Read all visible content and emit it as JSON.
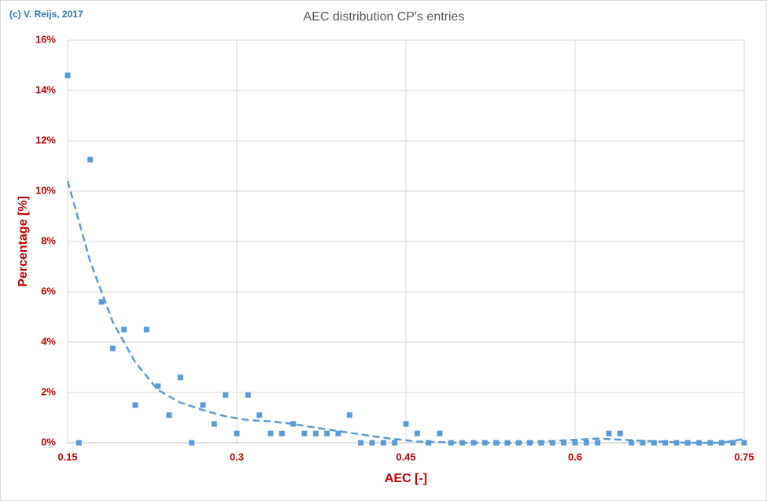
{
  "chart_data": {
    "type": "scatter",
    "title": "AEC distribution CP's entries",
    "subtitle": "(c) V. Reijs, 2017",
    "x_label": "AEC [-]",
    "y_label": "Percentage [%]",
    "xlim": [
      0.15,
      0.75
    ],
    "xticks": [
      0.15,
      0.3,
      0.45,
      0.6,
      0.75
    ],
    "ylim": [
      0,
      16
    ],
    "yticks": [
      {
        "value": 0,
        "label": "0%"
      },
      {
        "value": 2,
        "label": "2%"
      },
      {
        "value": 4,
        "label": "4%"
      },
      {
        "value": 6,
        "label": "6%"
      },
      {
        "value": 8,
        "label": "8%"
      },
      {
        "value": 10,
        "label": "10%"
      },
      {
        "value": 12,
        "label": "12%"
      },
      {
        "value": 14,
        "label": "14%"
      },
      {
        "value": 16,
        "label": "16%"
      }
    ],
    "grid": true,
    "series": [
      {
        "color": "#5b9bd5",
        "style": "markers",
        "x": [
          0.15,
          0.16,
          0.17,
          0.18,
          0.19,
          0.2,
          0.21,
          0.22,
          0.23,
          0.24,
          0.25,
          0.26,
          0.27,
          0.28,
          0.29,
          0.3,
          0.31,
          0.32,
          0.33,
          0.34,
          0.35,
          0.36,
          0.37,
          0.38,
          0.39,
          0.4,
          0.41,
          0.42,
          0.43,
          0.44,
          0.45,
          0.46,
          0.47,
          0.48,
          0.49,
          0.5,
          0.51,
          0.52,
          0.53,
          0.54,
          0.55,
          0.56,
          0.57,
          0.58,
          0.59,
          0.6,
          0.61,
          0.62,
          0.63,
          0.64,
          0.65,
          0.66,
          0.67,
          0.68,
          0.69,
          0.7,
          0.71,
          0.72,
          0.73,
          0.74,
          0.75
        ],
        "values": [
          14.6,
          0,
          11.25,
          5.6,
          3.75,
          4.5,
          1.5,
          4.5,
          2.25,
          1.1,
          2.6,
          0,
          1.5,
          0.75,
          1.9,
          0.37,
          1.9,
          1.1,
          0.37,
          0.37,
          0.75,
          0.37,
          0.37,
          0.37,
          0.37,
          1.1,
          0,
          0,
          0,
          0,
          0.75,
          0.37,
          0,
          0.37,
          0,
          0,
          0,
          0,
          0,
          0,
          0,
          0,
          0,
          0,
          0,
          0,
          0,
          0,
          0.37,
          0.37,
          0,
          0,
          0,
          0,
          0,
          0,
          0,
          0,
          0,
          0,
          0
        ]
      },
      {
        "color": "#5b9bd5",
        "style": "dashed-line",
        "x": [
          0.15,
          0.17,
          0.19,
          0.21,
          0.23,
          0.25,
          0.27,
          0.29,
          0.31,
          0.33,
          0.35,
          0.37,
          0.4,
          0.43,
          0.46,
          0.5,
          0.55,
          0.6,
          0.62,
          0.65,
          0.7,
          0.73,
          0.75
        ],
        "values": [
          10.4,
          7.2,
          4.8,
          3.2,
          2.1,
          1.6,
          1.3,
          1.05,
          0.9,
          0.85,
          0.75,
          0.6,
          0.4,
          0.2,
          0.05,
          0,
          0,
          0.12,
          0.17,
          0.1,
          0,
          0,
          0.15
        ]
      }
    ]
  }
}
